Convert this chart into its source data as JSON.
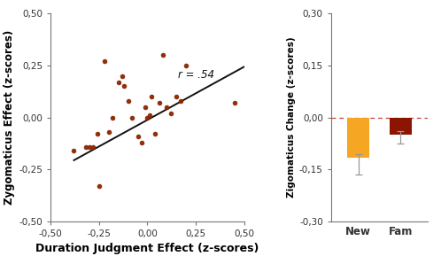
{
  "scatter_x": [
    -0.38,
    -0.32,
    -0.3,
    -0.28,
    -0.26,
    -0.25,
    -0.22,
    -0.2,
    -0.18,
    -0.15,
    -0.13,
    -0.12,
    -0.1,
    -0.08,
    -0.05,
    -0.03,
    -0.01,
    0.0,
    0.01,
    0.02,
    0.04,
    0.06,
    0.08,
    0.1,
    0.12,
    0.15,
    0.17,
    0.2,
    0.45
  ],
  "scatter_y": [
    -0.16,
    -0.14,
    -0.14,
    -0.14,
    -0.08,
    -0.33,
    0.27,
    -0.07,
    0.0,
    0.17,
    0.2,
    0.15,
    0.08,
    0.0,
    -0.09,
    -0.12,
    0.05,
    0.0,
    0.01,
    0.1,
    -0.08,
    0.07,
    0.3,
    0.05,
    0.02,
    0.1,
    0.08,
    0.25,
    0.07
  ],
  "line_x": [
    -0.38,
    0.5
  ],
  "line_y": [
    -0.205,
    0.243
  ],
  "r_label": "r = .54",
  "r_x": 0.16,
  "r_y": 0.175,
  "scatter_color": "#8B2500",
  "line_color": "#111111",
  "xlabel": "Duration Judgment Effect (z-scores)",
  "ylabel": "Zygomaticus Effect (z-scores)",
  "xlim": [
    -0.5,
    0.5
  ],
  "ylim": [
    -0.5,
    0.5
  ],
  "xticks": [
    -0.5,
    -0.25,
    0.0,
    0.25,
    0.5
  ],
  "yticks": [
    -0.5,
    -0.25,
    0.0,
    0.25,
    0.5
  ],
  "xtick_labels": [
    "-0,50",
    "-0,25",
    "0,00",
    "0,25",
    "0,50"
  ],
  "ytick_labels": [
    "-0,50",
    "-0,25",
    "0,00",
    "0,25",
    "0,50"
  ],
  "bar_categories": [
    "New",
    "Fam"
  ],
  "bar_values": [
    -0.115,
    -0.05
  ],
  "bar_errors_lower": [
    0.048,
    0.025
  ],
  "bar_errors_upper": [
    0.01,
    0.01
  ],
  "bar_colors": [
    "#F5A623",
    "#8B1500"
  ],
  "bar_ylabel": "Zigomaticus Change (z-scores)",
  "bar_ylim": [
    -0.3,
    0.3
  ],
  "bar_yticks": [
    -0.3,
    -0.15,
    0.0,
    0.15,
    0.3
  ],
  "bar_ytick_labels": [
    "-0,30",
    "-0,15",
    "0,00",
    "0,15",
    "0,30"
  ],
  "dashed_line_color": "#CC4444",
  "background_color": "#ffffff",
  "error_cap_color": "#999999",
  "tick_fontsize": 7.5,
  "label_fontsize": 8.5,
  "xlabel_fontsize": 9.0,
  "ylabel_fontsize": 8.5,
  "r_fontsize": 8.5
}
